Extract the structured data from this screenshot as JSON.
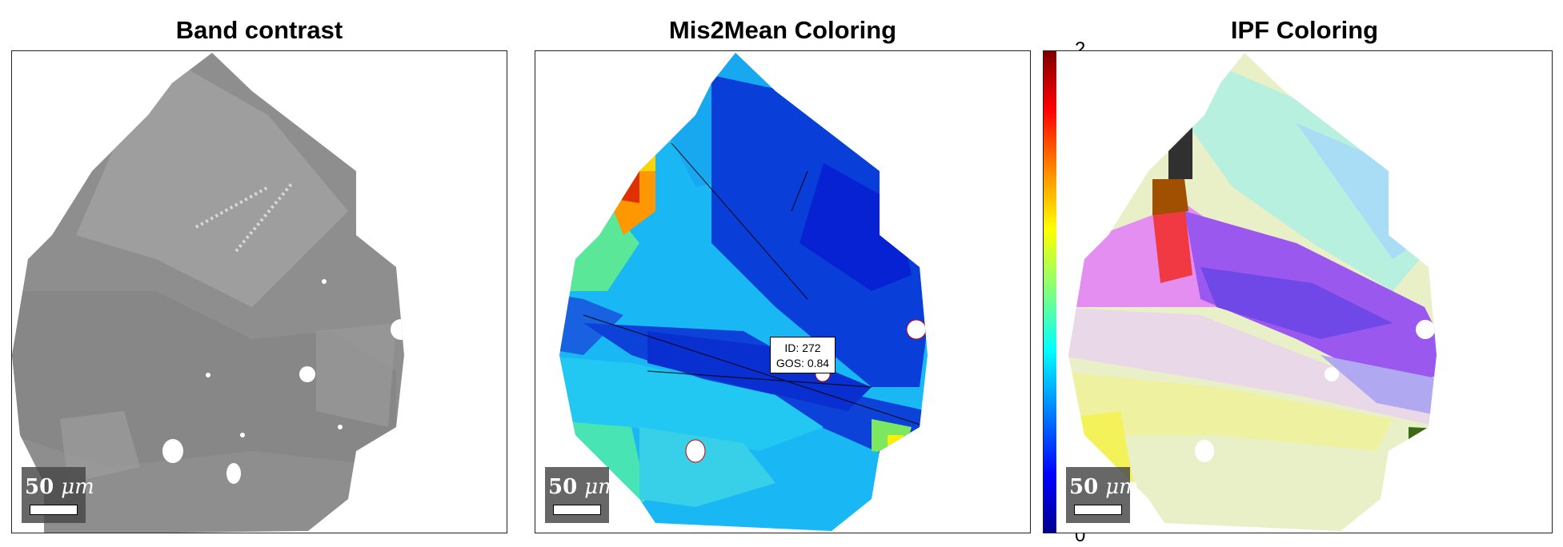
{
  "panels": [
    {
      "title": "Band contrast",
      "scalebar": {
        "value": "50",
        "unit": "μm"
      }
    },
    {
      "title": "Mis2Mean Coloring",
      "scalebar": {
        "value": "50",
        "unit": "μm"
      }
    },
    {
      "title": "IPF Coloring",
      "scalebar": {
        "value": "50",
        "unit": "μm"
      }
    }
  ],
  "colorbar": {
    "max_label": "2",
    "min_label": "0"
  },
  "tooltip": {
    "id_line": "ID: 272",
    "gos_line": "GOS: 0.84"
  }
}
